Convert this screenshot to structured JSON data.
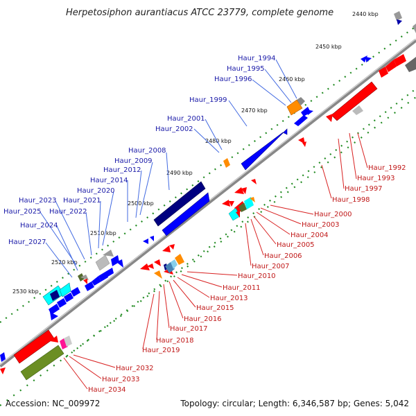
{
  "title": "Herpetosiphon aurantiacus ATCC 23779, complete genome",
  "footer": {
    "accession": "Accession: NC_009972",
    "summary": "Topology: circular; Length: 6,346,587 bp; Genes: 5,042"
  },
  "colors": {
    "backbone": "#888888",
    "forward": "#0000ff",
    "reverse": "#ff0000",
    "dots": "#228b22",
    "label_forward": "#1a1aa8",
    "label_reverse": "#c01818"
  },
  "scale": [
    "2440 kbp",
    "2450 kbp",
    "2460 kbp",
    "2470 kbp",
    "2480 kbp",
    "2490 kbp",
    "2500 kbp",
    "2510 kbp",
    "2520 kbp",
    "2530 kbp"
  ],
  "labels_forward": [
    "Haur_1994",
    "Haur_1995",
    "Haur_1996",
    "Haur_1999",
    "Haur_2001",
    "Haur_2002",
    "Haur_2008",
    "Haur_2009",
    "Haur_2012",
    "Haur_2014",
    "Haur_2020",
    "Haur_2023",
    "Haur_2021",
    "Haur_2025",
    "Haur_2022",
    "Haur_2024",
    "Haur_2027"
  ],
  "labels_reverse": [
    "Haur_1992",
    "Haur_1993",
    "Haur_1997",
    "Haur_1998",
    "Haur_2000",
    "Haur_2003",
    "Haur_2004",
    "Haur_2005",
    "Haur_2006",
    "Haur_2007",
    "Haur_2010",
    "Haur_2011",
    "Haur_2013",
    "Haur_2015",
    "Haur_2016",
    "Haur_2017",
    "Haur_2018",
    "Haur_2019",
    "Haur_2032",
    "Haur_2033",
    "Haur_2034"
  ]
}
